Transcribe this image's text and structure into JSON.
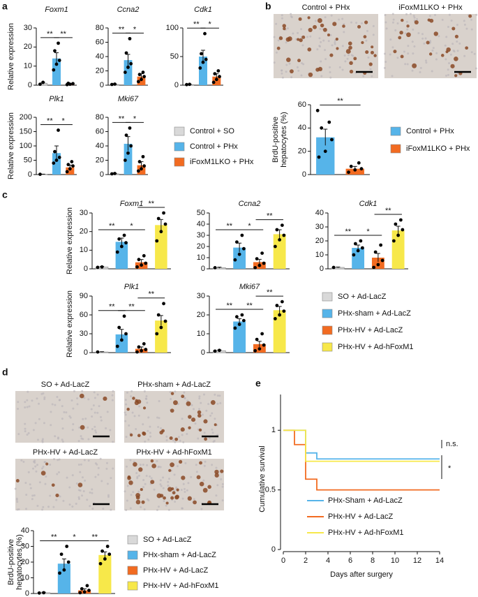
{
  "panel_labels": [
    "a",
    "b",
    "c",
    "d",
    "e"
  ],
  "micrographs": {
    "b": [
      "Control + PHx",
      "iFoxM1LKO + PHx"
    ],
    "d": [
      "SO + Ad-LacZ",
      "PHx-sham + Ad-LacZ",
      "PHx-HV + Ad-LacZ",
      "PHx-HV + Ad-hFoxM1"
    ]
  },
  "chart_data": [
    {
      "type": "bar",
      "ylabel": [
        "Relative expression"
      ],
      "groups": [
        "Control + SO",
        "Control + PHx",
        "iFoxM1LKO + PHx"
      ],
      "colors": [
        "#d9d9d9",
        "#56b4e9",
        "#f26b21"
      ],
      "subplots": [
        {
          "title": "Foxm1",
          "ylim": [
            0,
            30
          ],
          "yticks": [
            0,
            10,
            20,
            30
          ],
          "values": [
            1,
            14,
            0.5
          ],
          "errors": [
            0.5,
            3,
            0.3
          ],
          "points": [
            [
              0.5,
              1.5
            ],
            [
              8,
              11,
              13,
              18,
              22
            ],
            [
              0.3,
              0.5,
              0.8,
              1
            ]
          ],
          "significance": [
            "**",
            "**"
          ]
        },
        {
          "title": "Ccna2",
          "ylim": [
            0,
            80
          ],
          "yticks": [
            0,
            20,
            40,
            60,
            80
          ],
          "values": [
            1,
            35,
            12
          ],
          "errors": [
            0.5,
            8,
            4
          ],
          "points": [
            [
              1,
              1.5
            ],
            [
              18,
              25,
              30,
              45,
              65
            ],
            [
              5,
              8,
              12,
              15,
              18
            ]
          ],
          "significance": [
            "**",
            "*"
          ]
        },
        {
          "title": "Cdk1",
          "ylim": [
            0,
            100
          ],
          "yticks": [
            0,
            50,
            100
          ],
          "values": [
            1,
            50,
            15
          ],
          "errors": [
            0.5,
            11,
            5
          ],
          "points": [
            [
              1,
              1.5
            ],
            [
              30,
              40,
              45,
              55,
              90
            ],
            [
              5,
              10,
              15,
              20,
              25
            ]
          ],
          "significance": [
            "**",
            "*"
          ]
        },
        {
          "title": "Plk1",
          "ylim": [
            0,
            200
          ],
          "yticks": [
            0,
            50,
            100,
            150,
            200
          ],
          "values": [
            1,
            75,
            25
          ],
          "errors": [
            0.5,
            25,
            8
          ],
          "points": [
            [
              1
            ],
            [
              40,
              50,
              60,
              80,
              155
            ],
            [
              10,
              20,
              30,
              35,
              45
            ]
          ],
          "significance": [
            "**",
            "*"
          ]
        },
        {
          "title": "Mki67",
          "ylim": [
            0,
            80
          ],
          "yticks": [
            0,
            20,
            40,
            60,
            80
          ],
          "values": [
            1,
            43,
            13
          ],
          "errors": [
            0.5,
            10,
            5
          ],
          "points": [
            [
              1,
              1.5
            ],
            [
              20,
              30,
              40,
              55,
              65
            ],
            [
              5,
              8,
              12,
              18,
              25
            ]
          ],
          "significance": [
            "**",
            "*"
          ]
        }
      ]
    },
    {
      "type": "bar",
      "ylabel": [
        "BrdU-positive",
        "hepatocytes (%)"
      ],
      "groups": [
        "Control + PHx",
        "iFoxM1LKO + PHx"
      ],
      "colors": [
        "#56b4e9",
        "#f26b21"
      ],
      "subplots": [
        {
          "ylim": [
            0,
            60
          ],
          "yticks": [
            0,
            20,
            40,
            60
          ],
          "values": [
            32,
            5
          ],
          "errors": [
            7,
            2
          ],
          "points": [
            [
              15,
              20,
              30,
              40,
              45,
              55
            ],
            [
              2,
              4,
              5,
              7,
              10
            ]
          ],
          "significance": [
            "**"
          ]
        }
      ]
    },
    {
      "type": "bar",
      "ylabel": [
        "Relative expression"
      ],
      "groups": [
        "SO + Ad-LacZ",
        "PHx-sham + Ad-LacZ",
        "PHx-HV + Ad-LacZ",
        "PHx-HV + Ad-hFoxM1"
      ],
      "colors": [
        "#d9d9d9",
        "#56b4e9",
        "#f26b21",
        "#f7e84a"
      ],
      "subplots": [
        {
          "title": "Foxm1",
          "ylim": [
            0,
            30
          ],
          "yticks": [
            0,
            10,
            20,
            30
          ],
          "values": [
            1,
            14.5,
            3.5,
            23.5
          ],
          "errors": [
            0.3,
            2,
            1.5,
            3
          ],
          "points": [
            [
              0.8,
              1
            ],
            [
              9,
              12,
              14,
              16,
              18
            ],
            [
              1,
              2,
              3,
              5,
              7
            ],
            [
              15,
              20,
              24,
              27,
              30
            ]
          ],
          "significance": [
            "**",
            "*",
            "**"
          ]
        },
        {
          "title": "Ccna2",
          "ylim": [
            0,
            50
          ],
          "yticks": [
            0,
            10,
            20,
            30,
            40,
            50
          ],
          "values": [
            1,
            19,
            6,
            31
          ],
          "errors": [
            0.5,
            4,
            2.5,
            4
          ],
          "points": [
            [
              1
            ],
            [
              8,
              13,
              18,
              24,
              30
            ],
            [
              1,
              3,
              5,
              9,
              14
            ],
            [
              20,
              26,
              30,
              35,
              39
            ]
          ],
          "significance": [
            "**",
            "*",
            "**"
          ]
        },
        {
          "title": "Cdk1",
          "ylim": [
            0,
            40
          ],
          "yticks": [
            0,
            10,
            20,
            30,
            40
          ],
          "values": [
            1,
            15,
            8,
            27.5
          ],
          "errors": [
            0.3,
            2,
            3,
            3
          ],
          "points": [
            [
              1
            ],
            [
              10,
              13,
              15,
              18,
              20
            ],
            [
              1,
              3,
              6,
              12,
              17
            ],
            [
              20,
              24,
              28,
              32,
              35
            ]
          ],
          "significance": [
            "**",
            "*",
            "**"
          ]
        },
        {
          "title": "Plk1",
          "ylim": [
            0,
            90
          ],
          "yticks": [
            0,
            30,
            60,
            90
          ],
          "values": [
            1,
            29,
            6,
            51
          ],
          "errors": [
            0.5,
            8,
            3,
            8
          ],
          "points": [
            [
              1
            ],
            [
              10,
              20,
              30,
              40,
              58
            ],
            [
              1,
              3,
              5,
              9,
              14
            ],
            [
              30,
              40,
              50,
              60,
              78
            ]
          ],
          "significance": [
            "**",
            "**",
            "**"
          ]
        },
        {
          "title": "Mki67",
          "ylim": [
            0,
            30
          ],
          "yticks": [
            0,
            10,
            20,
            30
          ],
          "values": [
            1,
            16.5,
            4.5,
            22.5
          ],
          "errors": [
            0.4,
            1.5,
            1.5,
            2
          ],
          "points": [
            [
              0.8,
              1.2
            ],
            [
              13,
              15,
              17,
              19,
              20
            ],
            [
              1,
              2,
              4,
              7,
              10
            ],
            [
              18,
              20,
              22,
              25,
              27
            ]
          ],
          "significance": [
            "**",
            "**",
            "**"
          ]
        }
      ]
    },
    {
      "type": "bar",
      "ylabel": [
        "BrdU-positive",
        "hepatocytes (%)"
      ],
      "groups": [
        "SO + Ad-LacZ",
        "PHx-sham + Ad-LacZ",
        "PHx-HV + Ad-LacZ",
        "PHx-HV + Ad-hFoxM1"
      ],
      "colors": [
        "#d9d9d9",
        "#56b4e9",
        "#f26b21",
        "#f7e84a"
      ],
      "subplots": [
        {
          "ylim": [
            0,
            40
          ],
          "yticks": [
            0,
            10,
            20,
            30,
            40
          ],
          "values": [
            0.5,
            19,
            2,
            24.5
          ],
          "errors": [
            0.3,
            3,
            1,
            2
          ],
          "points": [
            [
              0.3,
              0.5
            ],
            [
              13,
              15,
              20,
              25,
              30
            ],
            [
              0.5,
              1,
              2,
              3,
              5
            ],
            [
              19,
              22,
              25,
              27,
              30
            ]
          ],
          "significance": [
            "**",
            "*",
            "**"
          ]
        }
      ]
    },
    {
      "type": "line",
      "xlabel": "Days after surgery",
      "ylabel": "Cumulative survival",
      "xlim": [
        0,
        14
      ],
      "xticks": [
        0,
        2,
        4,
        6,
        8,
        10,
        12,
        14
      ],
      "ylim": [
        0,
        1.3
      ],
      "yticks": [
        0,
        0.5,
        1
      ],
      "series": [
        {
          "name": "PHx-Sham + Ad-LacZ",
          "color": "#56b4e9",
          "x": [
            0,
            2,
            3,
            14
          ],
          "values": [
            1,
            0.81,
            0.76,
            0.76
          ]
        },
        {
          "name": "PHx-HV + Ad-LacZ",
          "color": "#f26b21",
          "x": [
            0,
            1,
            2,
            3,
            14
          ],
          "values": [
            1,
            0.88,
            0.59,
            0.5,
            0.5
          ]
        },
        {
          "name": "PHx-HV + Ad-hFoxM1",
          "color": "#f7e84a",
          "x": [
            0,
            2,
            14
          ],
          "values": [
            1,
            0.74,
            0.74
          ]
        }
      ],
      "annotations": [
        "n.s.",
        "*"
      ]
    }
  ]
}
